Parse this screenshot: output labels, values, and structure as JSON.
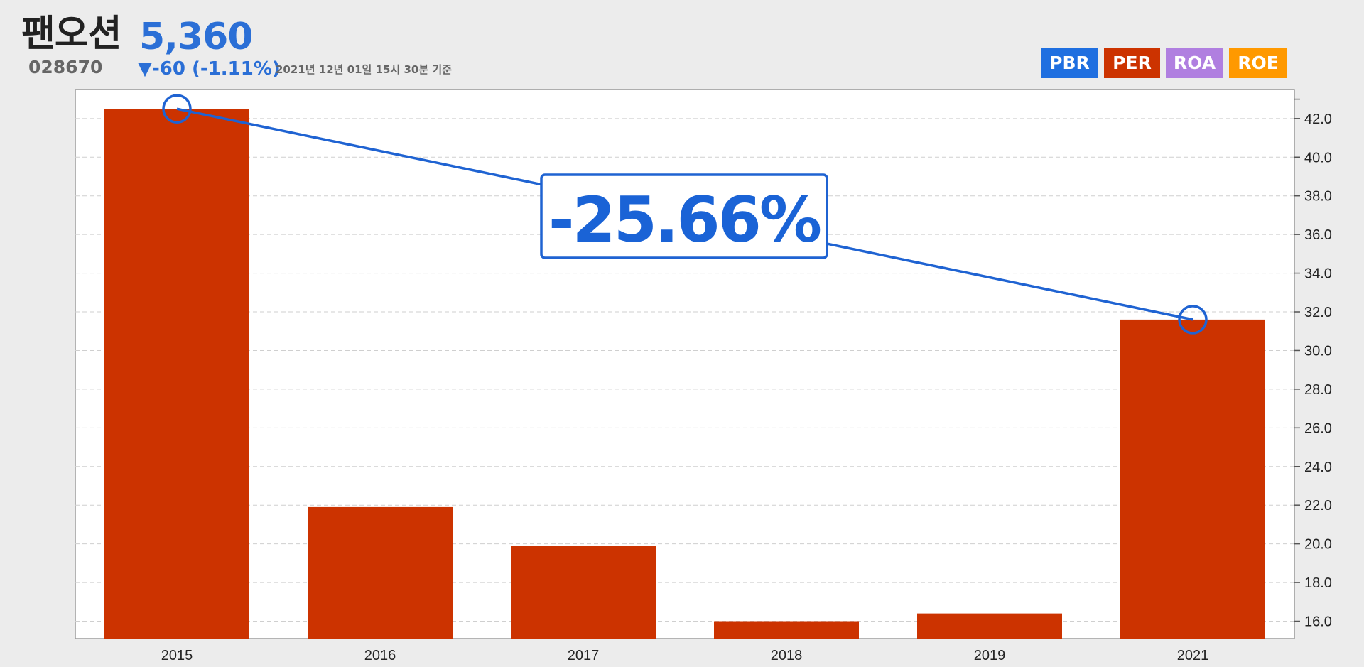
{
  "header": {
    "name": "팬오션",
    "price": "5,360",
    "code": "028670",
    "change": "▼-60 (-1.11%)",
    "timestamp": "2021년 12년 01일 15시 30분 기준"
  },
  "metric_buttons": [
    {
      "label": "PBR",
      "color": "#1f6fe0"
    },
    {
      "label": "PER",
      "color": "#cc3300"
    },
    {
      "label": "ROA",
      "color": "#b07fe0"
    },
    {
      "label": "ROE",
      "color": "#ff9900"
    }
  ],
  "chart_data": {
    "type": "bar",
    "categories": [
      "2015",
      "2016",
      "2017",
      "2018",
      "2019",
      "2021"
    ],
    "values": [
      42.5,
      21.9,
      19.9,
      16.0,
      16.4,
      31.6
    ],
    "ylim": [
      15.1,
      43.5
    ],
    "y_ticks": [
      16.0,
      18.0,
      20.0,
      22.0,
      24.0,
      26.0,
      28.0,
      30.0,
      32.0,
      34.0,
      36.0,
      38.0,
      40.0,
      42.0
    ],
    "y_axis_side": "right",
    "grid": true,
    "bar_color": "#cc3300",
    "trend": {
      "from_category": "2015",
      "to_category": "2021",
      "label": "-25.66%",
      "color": "#1f63d2"
    }
  }
}
